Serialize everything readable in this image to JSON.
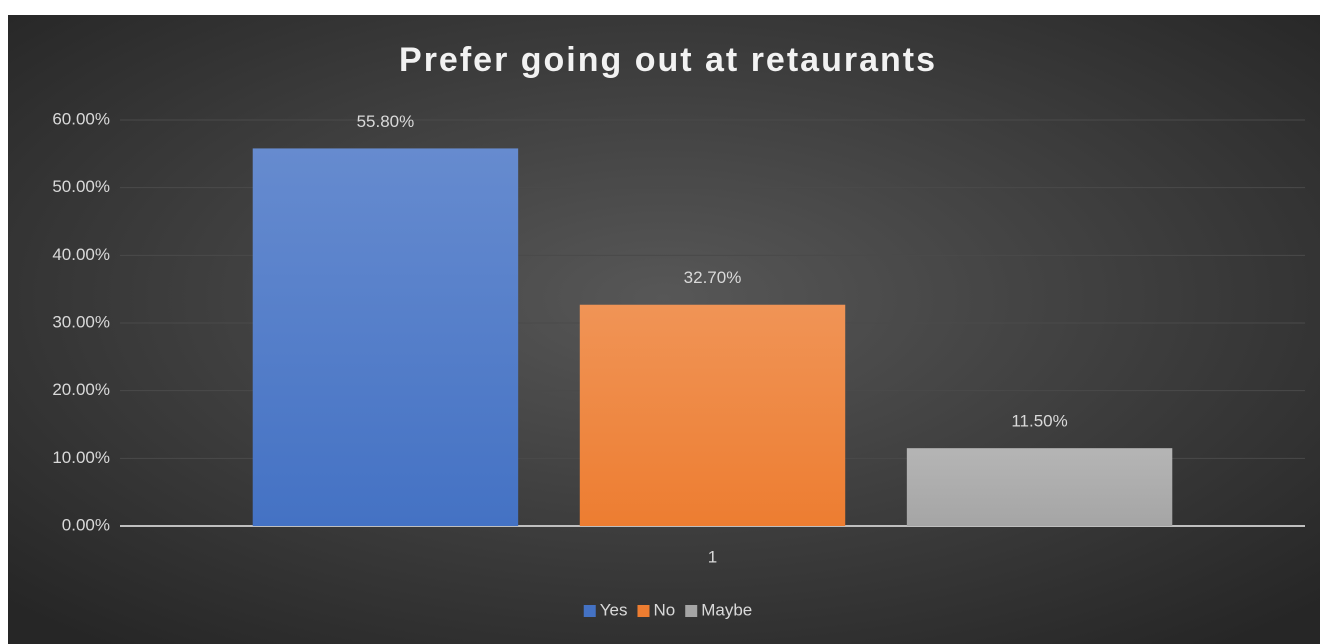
{
  "chart_data": {
    "type": "bar",
    "title": "Prefer going out at retaurants",
    "categories": [
      "1"
    ],
    "series": [
      {
        "name": "Yes",
        "color": "#4472c4",
        "values": [
          55.8
        ],
        "value_labels": [
          "55.80%"
        ]
      },
      {
        "name": "No",
        "color": "#ed7d31",
        "values": [
          32.7
        ],
        "value_labels": [
          "32.70%"
        ]
      },
      {
        "name": "Maybe",
        "color": "#a5a5a5",
        "values": [
          11.5
        ],
        "value_labels": [
          "11.50%"
        ]
      }
    ],
    "ylim": [
      0,
      60
    ],
    "yticks": [
      {
        "value": 0,
        "label": "0.00%"
      },
      {
        "value": 10,
        "label": "10.00%"
      },
      {
        "value": 20,
        "label": "20.00%"
      },
      {
        "value": 30,
        "label": "30.00%"
      },
      {
        "value": 40,
        "label": "40.00%"
      },
      {
        "value": 50,
        "label": "50.00%"
      },
      {
        "value": 60,
        "label": "60.00%"
      }
    ],
    "grid": true,
    "legend": "bottom"
  }
}
